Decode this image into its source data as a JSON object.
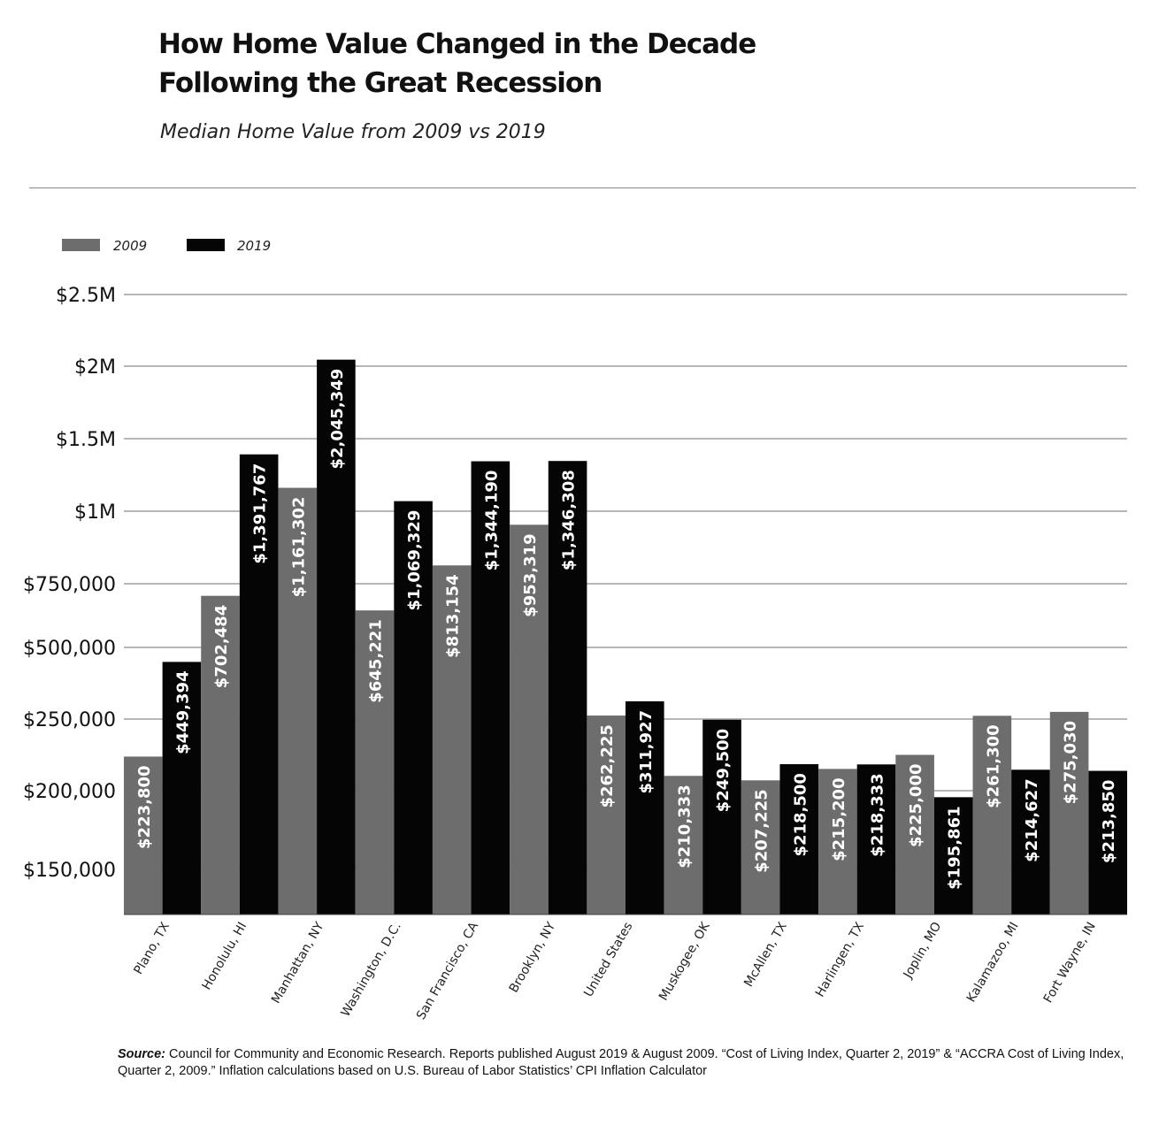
{
  "title_line1": "How Home Value Changed in the Decade",
  "title_line2": "Following the Great Recession",
  "subtitle": "Median Home Value from 2009 vs 2019",
  "source_label": "Source:",
  "source_text": "Council for Community and Economic Research. Reports published August 2019 & August 2009. “Cost of Living Index, Quarter 2, 2019” & “ACCRA Cost of Living Index, Quarter 2, 2009.” Inflation calculations based on U.S. Bureau of Labor Statistics’ CPI Inflation Calculator",
  "colors": {
    "s2009": "#6d6d6d",
    "s2019": "#050505",
    "grid": "#6f6f6f"
  },
  "chart_data": {
    "type": "bar",
    "categories": [
      "Plano, TX",
      "Honolulu, HI",
      "Manhattan, NY",
      "Washington, D.C.",
      "San Francisco, CA",
      "Brooklyn, NY",
      "United States",
      "Muskogee, OK",
      "McAllen, TX",
      "Harlingen, TX",
      "Joplin, MO",
      "Kalamazoo, MI",
      "Fort Wayne, IN"
    ],
    "series": [
      {
        "name": "2009",
        "values": [
          223800,
          702484,
          1161302,
          645221,
          813154,
          953319,
          262225,
          210333,
          207225,
          215200,
          225000,
          261300,
          275030
        ],
        "labels": [
          "$223,800",
          "$702,484",
          "$1,161,302",
          "$645,221",
          "$813,154",
          "$953,319",
          "$262,225",
          "$210,333",
          "$207,225",
          "$215,200",
          "$225,000",
          "$261,300",
          "$275,030"
        ]
      },
      {
        "name": "2019",
        "values": [
          449394,
          1391767,
          2045349,
          1069329,
          1344190,
          1346308,
          311927,
          249500,
          218500,
          218333,
          195861,
          214627,
          213850
        ],
        "labels": [
          "$449,394",
          "$1,391,767",
          "$2,045,349",
          "$1,069,329",
          "$1,344,190",
          "$1,346,308",
          "$311,927",
          "$249,500",
          "$218,500",
          "$218,333",
          "$195,861",
          "$214,627",
          "$213,850"
        ]
      }
    ],
    "yticks": [
      150000,
      200000,
      250000,
      500000,
      750000,
      1000000,
      1500000,
      2000000,
      2500000
    ],
    "ytick_labels": [
      "$150,000",
      "$200,000",
      "$250,000",
      "$500,000",
      "$750,000",
      "$1M",
      "$1.5M",
      "$2M",
      "$2.5M"
    ],
    "y_scale": "piecewise (non-uniform tick spacing)",
    "ylim": [
      120000,
      2500000
    ],
    "grid": true,
    "legend_position": "top-left"
  }
}
